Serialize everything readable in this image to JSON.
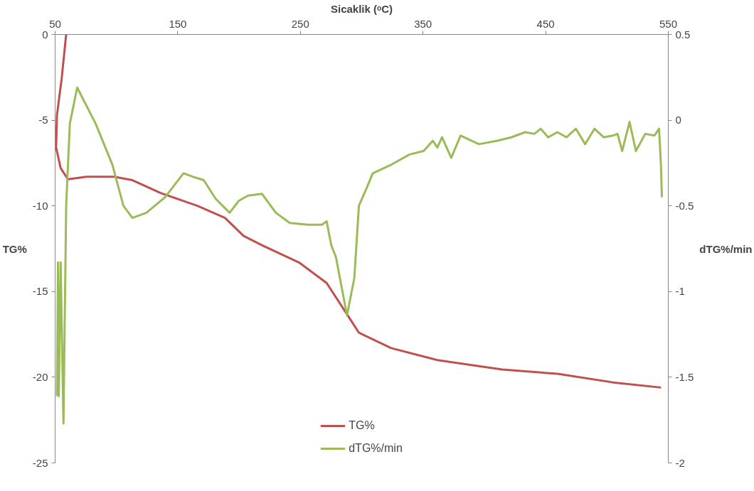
{
  "chart_data": {
    "type": "line",
    "xlabel": "Sicaklik (ᵒC)",
    "ylabel": "TG%",
    "y2label": "dTG%/min",
    "xlim": [
      50,
      550
    ],
    "xticks": [
      50,
      150,
      250,
      350,
      450,
      550
    ],
    "ylim": [
      -25,
      0
    ],
    "yticks": [
      -25,
      -20,
      -15,
      -10,
      -5,
      0
    ],
    "y2lim": [
      -2,
      0.5
    ],
    "y2ticks": [
      -2,
      -1.5,
      -1,
      -0.5,
      0,
      0.5
    ],
    "grid": false,
    "legend": "bottom",
    "marker": "none",
    "line_style": "solid",
    "series": [
      {
        "name": "TG%",
        "color": "#c0504d",
        "x": [
          59,
          55.3,
          51.5,
          50.8,
          54.5,
          60.5,
          75.6,
          98.2,
          113,
          136,
          166,
          188.5,
          203.6,
          218.7,
          248.8,
          271.4,
          288.7,
          297.7,
          324,
          361.7,
          414.5,
          459.6,
          504.8,
          544
        ],
        "values": [
          0,
          -2.6,
          -4.7,
          -6.6,
          -7.8,
          -8.45,
          -8.3,
          -8.3,
          -8.5,
          -9.25,
          -10.0,
          -10.7,
          -11.75,
          -12.3,
          -13.3,
          -14.5,
          -16.4,
          -17.4,
          -18.3,
          -19.0,
          -19.55,
          -19.8,
          -20.3,
          -20.6
        ]
      },
      {
        "name": "dTG%/min",
        "color": "#9bbb59",
        "axis": "y2",
        "x": [
          51.5,
          52.3,
          53,
          54.5,
          56.8,
          59,
          62,
          68,
          83,
          96.7,
          105.7,
          113,
          124.5,
          139.6,
          154.7,
          162.2,
          171.2,
          181,
          192.3,
          199.8,
          207.4,
          218.7,
          230,
          241.3,
          256.3,
          267.6,
          271.4,
          275.2,
          279,
          288,
          294,
          297.7,
          303.8,
          309,
          324,
          339,
          350.5,
          358,
          361.7,
          365.5,
          373,
          380.6,
          395.6,
          410.7,
          422,
          433.3,
          440.8,
          446,
          452,
          459.6,
          467,
          474.7,
          482.2,
          489.8,
          497.3,
          504.8,
          508.6,
          512.4,
          518.4,
          523.6,
          531.2,
          538.7,
          542.5,
          544,
          544.8
        ],
        "values": [
          -1.61,
          -0.83,
          -1.61,
          -0.83,
          -1.77,
          -0.5,
          -0.02,
          0.19,
          -0.02,
          -0.26,
          -0.5,
          -0.57,
          -0.54,
          -0.45,
          -0.31,
          -0.33,
          -0.35,
          -0.46,
          -0.54,
          -0.47,
          -0.44,
          -0.43,
          -0.54,
          -0.6,
          -0.61,
          -0.61,
          -0.59,
          -0.73,
          -0.8,
          -1.14,
          -0.92,
          -0.5,
          -0.4,
          -0.31,
          -0.26,
          -0.2,
          -0.18,
          -0.12,
          -0.16,
          -0.1,
          -0.22,
          -0.09,
          -0.14,
          -0.12,
          -0.1,
          -0.07,
          -0.08,
          -0.05,
          -0.1,
          -0.07,
          -0.1,
          -0.05,
          -0.14,
          -0.05,
          -0.1,
          -0.09,
          -0.08,
          -0.18,
          -0.01,
          -0.18,
          -0.08,
          -0.09,
          -0.05,
          -0.26,
          -0.45
        ]
      }
    ]
  }
}
